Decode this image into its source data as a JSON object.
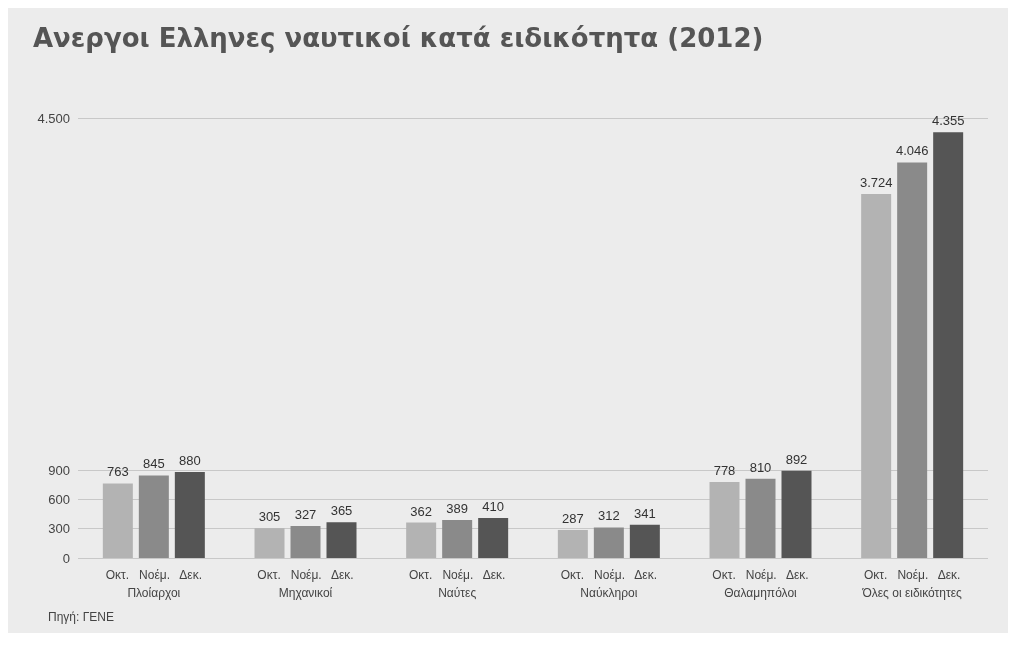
{
  "chart_data": {
    "type": "bar",
    "title": "Ανεργοι Ελληνες ναυτικοί κατά ειδικότητα (2012)",
    "categories": [
      "Πλοίαρχοι",
      "Μηχανικοί",
      "Ναύτες",
      "Ναύκληροι",
      "Θαλαμηπόλοι",
      "Όλες οι ειδικότητες"
    ],
    "series": [
      {
        "name": "Οκτ.",
        "color": "#b3b3b3",
        "values": [
          763,
          305,
          362,
          287,
          778,
          3724
        ]
      },
      {
        "name": "Νοέμ.",
        "color": "#8a8a8a",
        "values": [
          845,
          327,
          389,
          312,
          810,
          4046
        ]
      },
      {
        "name": "Δεκ.",
        "color": "#555555",
        "values": [
          880,
          365,
          410,
          341,
          892,
          4355
        ]
      }
    ],
    "ylim": [
      0,
      4500
    ],
    "yticks": [
      0,
      300,
      600,
      900,
      {
        "value": 4500,
        "label": "4.500"
      }
    ],
    "value_labels": [
      [
        "763",
        "305",
        "362",
        "287",
        "778",
        "3.724"
      ],
      [
        "845",
        "327",
        "389",
        "312",
        "810",
        "4.046"
      ],
      [
        "880",
        "365",
        "410",
        "341",
        "892",
        "4.355"
      ]
    ],
    "grid": "y",
    "legend": false,
    "annotations": [
      "Πηγή: ΓΕΝΕ"
    ]
  }
}
